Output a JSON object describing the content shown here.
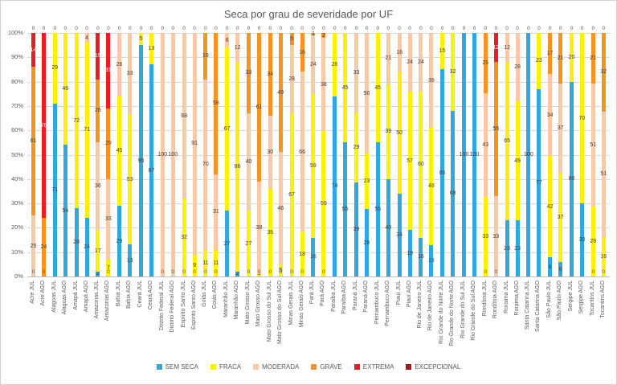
{
  "chart_data": {
    "type": "bar",
    "stacking": "percent",
    "title": "Seca por grau de severidade por UF",
    "xlabel": "",
    "ylabel": "",
    "ylim": [
      0,
      100
    ],
    "grid": true,
    "legend_position": "bottom",
    "y_ticks": [
      "0%",
      "10%",
      "20%",
      "30%",
      "40%",
      "50%",
      "60%",
      "70%",
      "80%",
      "90%",
      "100%"
    ],
    "series": [
      {
        "name": "SEM SECA",
        "color": "#2ea8df"
      },
      {
        "name": "FRACA",
        "color": "#fff100"
      },
      {
        "name": "MODERADA",
        "color": "#f8c9a4"
      },
      {
        "name": "GRAVE",
        "color": "#f7941e"
      },
      {
        "name": "EXTREMA",
        "color": "#ec1c24"
      },
      {
        "name": "EXCEPCIONAL",
        "color": "#b51217"
      }
    ],
    "bars": [
      {
        "label": "Acre JUL",
        "values": [
          0,
          0,
          25,
          61,
          14,
          0
        ]
      },
      {
        "label": "Acre AGO",
        "values": [
          0,
          0,
          0,
          24,
          76,
          0
        ]
      },
      {
        "label": "Alagoas JUL",
        "values": [
          71,
          29,
          0,
          0,
          0,
          0
        ]
      },
      {
        "label": "Alagoas AGO",
        "values": [
          54,
          46,
          0,
          0,
          0,
          0
        ]
      },
      {
        "label": "Amapá JUL",
        "values": [
          28,
          72,
          0,
          0,
          0,
          0
        ]
      },
      {
        "label": "Amapá AGO",
        "values": [
          24,
          71,
          4,
          0,
          0,
          0
        ]
      },
      {
        "label": "Amazonas JUL",
        "values": [
          2,
          17,
          36,
          26,
          19,
          0
        ]
      },
      {
        "label": "Amazonas AGO",
        "values": [
          0,
          7,
          33,
          29,
          31,
          0
        ]
      },
      {
        "label": "Bahia JUL",
        "values": [
          29,
          45,
          26,
          0,
          0,
          0
        ]
      },
      {
        "label": "Bahia AGO",
        "values": [
          13,
          53,
          33,
          0,
          0,
          0
        ]
      },
      {
        "label": "Ceará JUL",
        "values": [
          95,
          5,
          0,
          0,
          0,
          0
        ]
      },
      {
        "label": "Ceará AGO",
        "values": [
          87,
          13,
          0,
          0,
          0,
          0
        ]
      },
      {
        "label": "Distrito Federal JUL",
        "values": [
          0,
          0,
          100,
          0,
          0,
          0
        ]
      },
      {
        "label": "Distrito Federal AGO",
        "values": [
          0,
          0,
          100,
          0,
          0,
          0
        ]
      },
      {
        "label": "Espírito Santo JUL",
        "values": [
          0,
          32,
          68,
          0,
          0,
          0
        ]
      },
      {
        "label": "Espírito Santo AGO",
        "values": [
          0,
          9,
          91,
          0,
          0,
          0
        ]
      },
      {
        "label": "Goiás JUL",
        "values": [
          0,
          11,
          70,
          19,
          0,
          0
        ]
      },
      {
        "label": "Goiás AGO",
        "values": [
          0,
          11,
          31,
          58,
          0,
          0
        ]
      },
      {
        "label": "Maranhão JUL",
        "values": [
          27,
          67,
          6,
          0,
          0,
          0
        ]
      },
      {
        "label": "Maranhão AGO",
        "values": [
          2,
          86,
          12,
          0,
          0,
          0
        ]
      },
      {
        "label": "Mato Grosso JUL",
        "values": [
          0,
          27,
          40,
          33,
          0,
          0
        ]
      },
      {
        "label": "Mato Grosso AGO",
        "values": [
          0,
          1,
          38,
          61,
          0,
          0
        ]
      },
      {
        "label": "Mato Grosso do Sul JUL",
        "values": [
          0,
          36,
          30,
          34,
          0,
          0
        ]
      },
      {
        "label": "Mato Grosso do Sul AGO",
        "values": [
          0,
          5,
          46,
          49,
          0,
          0
        ]
      },
      {
        "label": "Minas Gerais JUL",
        "values": [
          0,
          67,
          28,
          5,
          0,
          0
        ]
      },
      {
        "label": "Minas Gerais AGO",
        "values": [
          0,
          18,
          66,
          16,
          0,
          0
        ]
      },
      {
        "label": "Pará JUL",
        "values": [
          16,
          59,
          24,
          1,
          0,
          0
        ]
      },
      {
        "label": "Pará AGO",
        "values": [
          0,
          59,
          38,
          2,
          0,
          0
        ]
      },
      {
        "label": "Paraíba JUL",
        "values": [
          74,
          26,
          0,
          0,
          0,
          0
        ]
      },
      {
        "label": "Paraíba AGO",
        "values": [
          55,
          45,
          0,
          0,
          0,
          0
        ]
      },
      {
        "label": "Paraná JUL",
        "values": [
          39,
          29,
          33,
          0,
          0,
          0
        ]
      },
      {
        "label": "Paraná AGO",
        "values": [
          28,
          23,
          50,
          0,
          0,
          0
        ]
      },
      {
        "label": "Pernambuco JUL",
        "values": [
          55,
          45,
          0,
          0,
          0,
          0
        ]
      },
      {
        "label": "Pernambuco AGO",
        "values": [
          40,
          39,
          21,
          0,
          0,
          0
        ]
      },
      {
        "label": "Piauí JUL",
        "values": [
          34,
          50,
          16,
          0,
          0,
          0
        ]
      },
      {
        "label": "Piauí AGO",
        "values": [
          19,
          57,
          24,
          0,
          0,
          0
        ]
      },
      {
        "label": "Rio de Janeiro JUL",
        "values": [
          16,
          60,
          24,
          0,
          0,
          0
        ]
      },
      {
        "label": "Rio de Janeiro AGO",
        "values": [
          13,
          48,
          39,
          0,
          0,
          0
        ]
      },
      {
        "label": "Rio Grande do Norte JUL",
        "values": [
          85,
          15,
          0,
          0,
          0,
          0
        ]
      },
      {
        "label": "Rio Grande do Norte AGO",
        "values": [
          68,
          32,
          0,
          0,
          0,
          0
        ]
      },
      {
        "label": "Rio Grande do Sul JUL",
        "values": [
          100,
          0,
          0,
          0,
          0,
          0
        ]
      },
      {
        "label": "Rio Grande do Sul AGO",
        "values": [
          100,
          0,
          0,
          0,
          0,
          0
        ]
      },
      {
        "label": "Rondônia JUL",
        "values": [
          0,
          33,
          43,
          25,
          0,
          0
        ]
      },
      {
        "label": "Rondônia AGO",
        "values": [
          0,
          0,
          33,
          55,
          12,
          0
        ]
      },
      {
        "label": "Roraima JUL",
        "values": [
          23,
          65,
          12,
          0,
          0,
          0
        ]
      },
      {
        "label": "Roraima AGO",
        "values": [
          23,
          49,
          28,
          0,
          0,
          0
        ]
      },
      {
        "label": "Santa Catarina JUL",
        "values": [
          100,
          0,
          0,
          0,
          0,
          0
        ]
      },
      {
        "label": "Santa Catarina AGO",
        "values": [
          77,
          23,
          0,
          0,
          0,
          0
        ]
      },
      {
        "label": "São Paulo JUL",
        "values": [
          8,
          42,
          34,
          17,
          0,
          0
        ]
      },
      {
        "label": "São Paulo AGO",
        "values": [
          6,
          37,
          37,
          21,
          0,
          0
        ]
      },
      {
        "label": "Sergipe JUL",
        "values": [
          80,
          20,
          0,
          0,
          0,
          0
        ]
      },
      {
        "label": "Sergipe AGO",
        "values": [
          30,
          70,
          0,
          0,
          0,
          0
        ]
      },
      {
        "label": "Tocantins JUL",
        "values": [
          0,
          29,
          51,
          21,
          0,
          0
        ]
      },
      {
        "label": "Tocantins AGO",
        "values": [
          0,
          16,
          51,
          32,
          0,
          0
        ]
      }
    ],
    "zero_labels": {
      "top": "0",
      "bottom": "0"
    }
  }
}
